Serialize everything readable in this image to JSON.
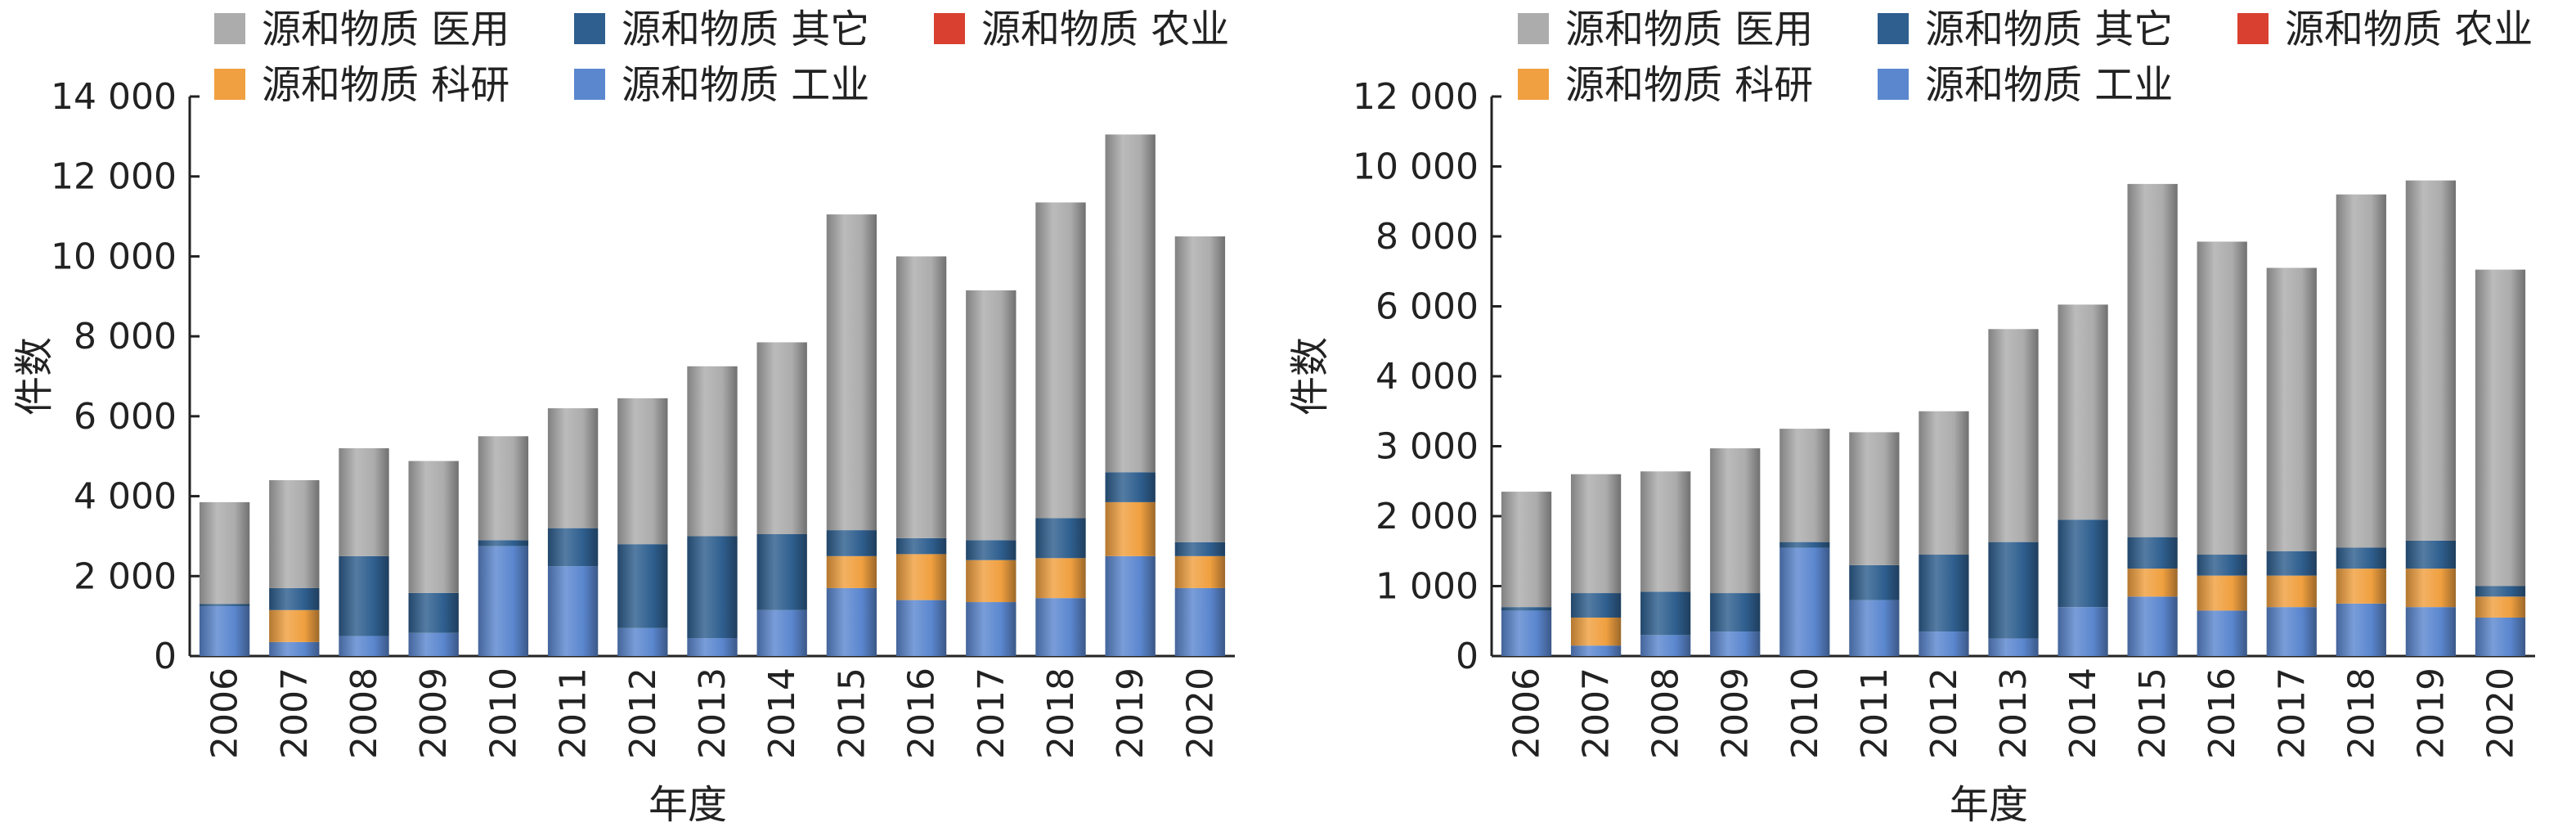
{
  "chart_data": [
    {
      "type": "bar",
      "stacked": true,
      "title": "",
      "xlabel": "年度",
      "ylabel": "件数",
      "ylim": [
        0,
        14000
      ],
      "yticks": [
        0,
        2000,
        4000,
        6000,
        8000,
        10000,
        12000,
        14000
      ],
      "ytick_labels": [
        "0",
        "2 000",
        "4 000",
        "6 000",
        "8 000",
        "10 000",
        "12 000",
        "14 000"
      ],
      "legend_position": "top",
      "categories": [
        "2006",
        "2007",
        "2008",
        "2009",
        "2010",
        "2011",
        "2012",
        "2013",
        "2014",
        "2015",
        "2016",
        "2017",
        "2018",
        "2019",
        "2020"
      ],
      "series": [
        {
          "name": "源和物质 工业",
          "color": "#5b87cf",
          "values": [
            1250,
            350,
            500,
            580,
            2750,
            2250,
            700,
            450,
            1150,
            1700,
            1400,
            1350,
            1450,
            2500,
            1700
          ]
        },
        {
          "name": "源和物质 科研",
          "color": "#f0a040",
          "values": [
            0,
            800,
            0,
            0,
            0,
            0,
            0,
            0,
            0,
            800,
            1150,
            1050,
            1000,
            1350,
            800
          ]
        },
        {
          "name": "源和物质 农业",
          "color": "#d94030",
          "values": [
            0,
            0,
            0,
            0,
            0,
            0,
            0,
            0,
            0,
            0,
            0,
            0,
            0,
            0,
            0
          ]
        },
        {
          "name": "源和物质 其它",
          "color": "#2f5f8f",
          "values": [
            50,
            550,
            2000,
            1000,
            150,
            950,
            2100,
            2550,
            1900,
            650,
            400,
            500,
            1000,
            750,
            350
          ]
        },
        {
          "name": "源和物质 医用",
          "color": "#acacac",
          "values": [
            2550,
            2700,
            2700,
            3300,
            2600,
            3000,
            3650,
            4250,
            4800,
            7900,
            7050,
            6250,
            7900,
            8450,
            7650
          ]
        }
      ]
    },
    {
      "type": "bar",
      "stacked": true,
      "title": "",
      "xlabel": "年度",
      "ylabel": "件数",
      "ylim": [
        0,
        12000
      ],
      "yticks": [
        0,
        1000,
        2000,
        3000,
        4000,
        6000,
        8000,
        10000,
        12000
      ],
      "ytick_labels": [
        "0",
        "1 000",
        "2 000",
        "3 000",
        "4 000",
        "6 000",
        "8 000",
        "10 000",
        "12 000"
      ],
      "legend_position": "top",
      "categories": [
        "2006",
        "2007",
        "2008",
        "2009",
        "2010",
        "2011",
        "2012",
        "2013",
        "2014",
        "2015",
        "2016",
        "2017",
        "2018",
        "2019",
        "2020"
      ],
      "series": [
        {
          "name": "源和物质 工业",
          "color": "#5b87cf",
          "values": [
            650,
            150,
            300,
            350,
            1550,
            800,
            350,
            250,
            700,
            850,
            650,
            700,
            750,
            700,
            550
          ]
        },
        {
          "name": "源和物质 科研",
          "color": "#f0a040",
          "values": [
            0,
            400,
            0,
            0,
            0,
            0,
            0,
            0,
            0,
            400,
            500,
            450,
            500,
            550,
            300
          ]
        },
        {
          "name": "源和物质 农业",
          "color": "#d94030",
          "values": [
            0,
            0,
            0,
            0,
            0,
            0,
            0,
            0,
            0,
            0,
            0,
            0,
            0,
            0,
            0
          ]
        },
        {
          "name": "源和物质 其它",
          "color": "#2f5f8f",
          "values": [
            50,
            350,
            620,
            550,
            80,
            500,
            1100,
            1380,
            1250,
            450,
            300,
            350,
            300,
            400,
            150
          ]
        },
        {
          "name": "源和物质 医用",
          "color": "#acacac",
          "values": [
            1650,
            1700,
            1720,
            2070,
            1620,
            1900,
            2050,
            3720,
            4100,
            7800,
            6400,
            5600,
            7650,
            7950,
            6050
          ]
        }
      ]
    }
  ],
  "legend_order": [
    [
      "源和物质 医用",
      "源和物质 其它",
      "源和物质 农业"
    ],
    [
      "源和物质 科研",
      "源和物质 工业"
    ]
  ]
}
